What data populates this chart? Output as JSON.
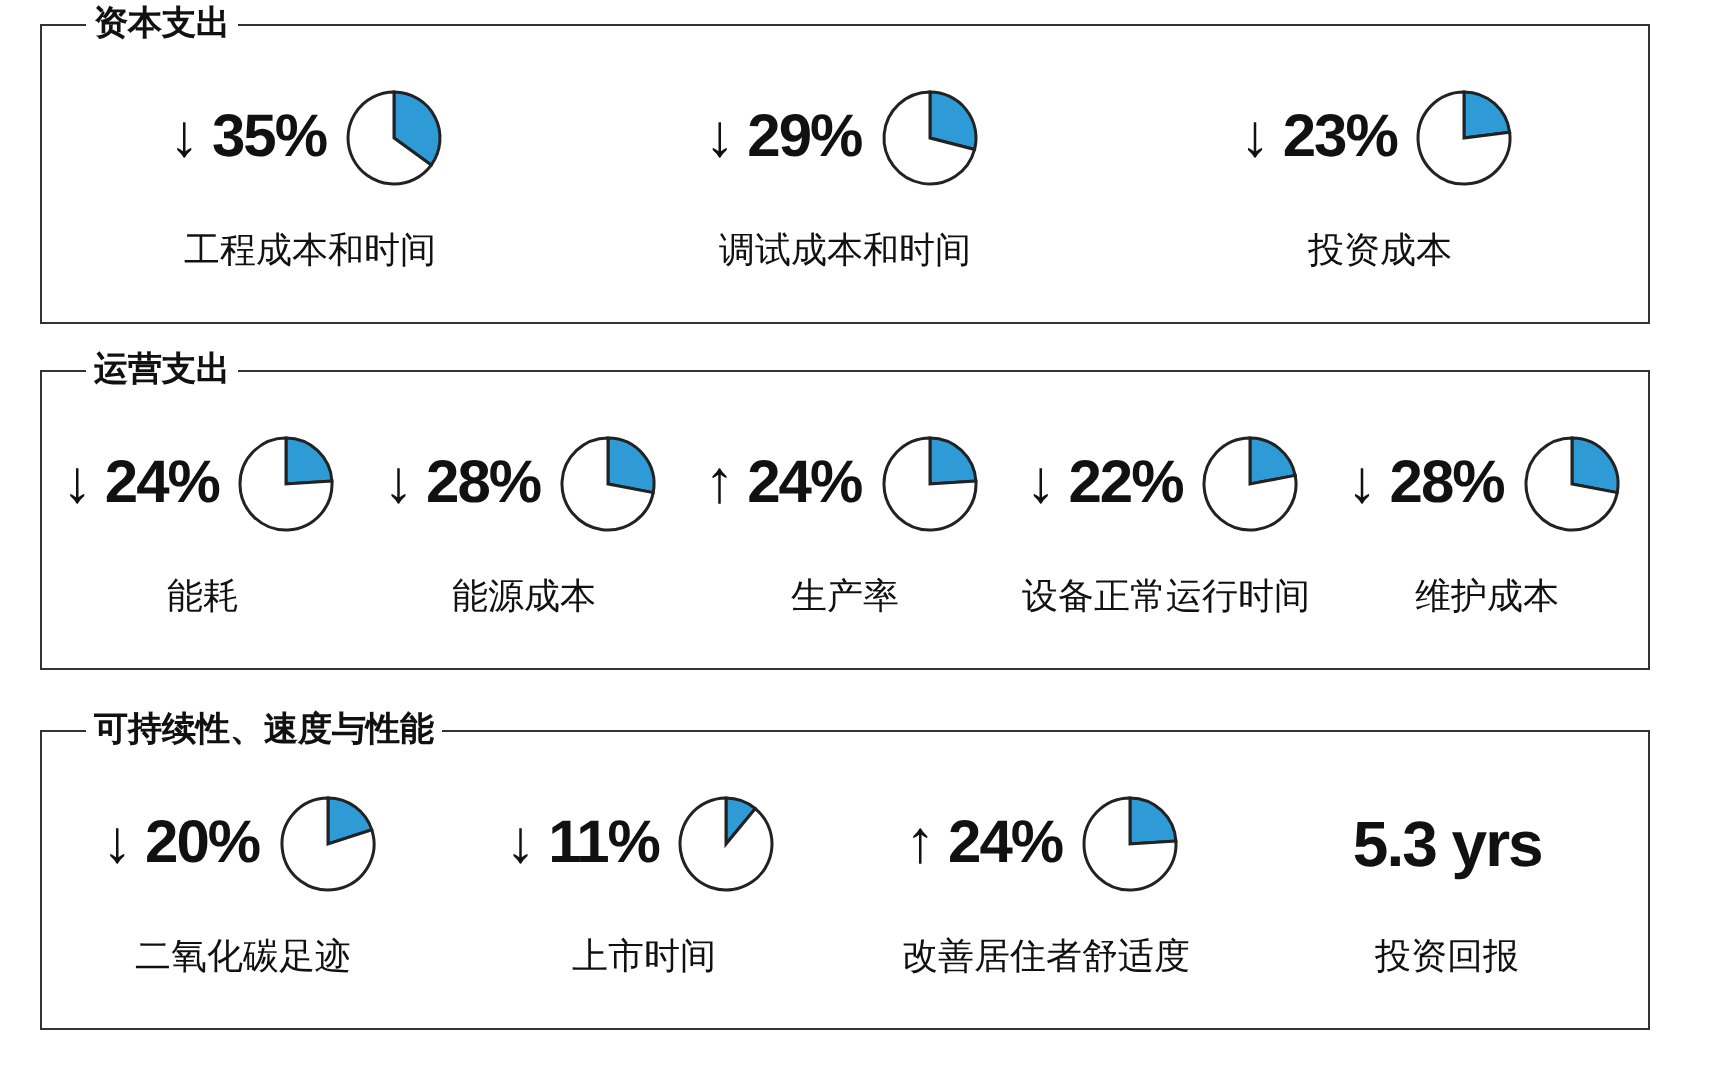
{
  "chart_data": [
    {
      "type": "other",
      "title": "资本支出"
    },
    {
      "type": "pie",
      "title": "↓ 35%",
      "subtitle": "工程成本和时间",
      "categories": [
        null,
        null
      ],
      "values": [
        35,
        65
      ],
      "colors": [
        "#2e9bd6",
        "#ffffff"
      ]
    },
    {
      "type": "pie",
      "title": "↓ 29%",
      "subtitle": "调试成本和时间",
      "categories": [
        null,
        null
      ],
      "values": [
        29,
        71
      ],
      "colors": [
        "#2e9bd6",
        "#ffffff"
      ]
    },
    {
      "type": "pie",
      "title": "↓ 23%",
      "subtitle": "投资成本",
      "categories": [
        null,
        null
      ],
      "values": [
        23,
        77
      ],
      "colors": [
        "#2e9bd6",
        "#ffffff"
      ]
    },
    {
      "type": "other",
      "title": "运营支出"
    },
    {
      "type": "pie",
      "title": "↓ 24%",
      "subtitle": "能耗",
      "categories": [
        null,
        null
      ],
      "values": [
        24,
        76
      ],
      "colors": [
        "#2e9bd6",
        "#ffffff"
      ]
    },
    {
      "type": "pie",
      "title": "↓ 28%",
      "subtitle": "能源成本",
      "categories": [
        null,
        null
      ],
      "values": [
        28,
        72
      ],
      "colors": [
        "#2e9bd6",
        "#ffffff"
      ]
    },
    {
      "type": "pie",
      "title": "↑ 24%",
      "subtitle": "生产率",
      "categories": [
        null,
        null
      ],
      "values": [
        24,
        76
      ],
      "colors": [
        "#2e9bd6",
        "#ffffff"
      ]
    },
    {
      "type": "pie",
      "title": "↓ 22%",
      "subtitle": "设备正常运行时间",
      "categories": [
        null,
        null
      ],
      "values": [
        22,
        78
      ],
      "colors": [
        "#2e9bd6",
        "#ffffff"
      ]
    },
    {
      "type": "pie",
      "title": "↓ 28%",
      "subtitle": "维护成本",
      "categories": [
        null,
        null
      ],
      "values": [
        28,
        72
      ],
      "colors": [
        "#2e9bd6",
        "#ffffff"
      ]
    },
    {
      "type": "other",
      "title": "可持续性、速度与性能"
    },
    {
      "type": "pie",
      "title": "↓ 20%",
      "subtitle": "二氧化碳足迹",
      "categories": [
        null,
        null
      ],
      "values": [
        20,
        80
      ],
      "colors": [
        "#2e9bd6",
        "#ffffff"
      ]
    },
    {
      "type": "pie",
      "title": "↓ 11%",
      "subtitle": "上市时间",
      "categories": [
        null,
        null
      ],
      "values": [
        11,
        89
      ],
      "colors": [
        "#2e9bd6",
        "#ffffff"
      ]
    },
    {
      "type": "pie",
      "title": "↑ 24%",
      "subtitle": "改善居住者舒适度",
      "categories": [
        null,
        null
      ],
      "values": [
        24,
        76
      ],
      "colors": [
        "#2e9bd6",
        "#ffffff"
      ]
    },
    {
      "type": "other",
      "title": "5.3 yrs",
      "subtitle": "投资回报"
    }
  ]
}
